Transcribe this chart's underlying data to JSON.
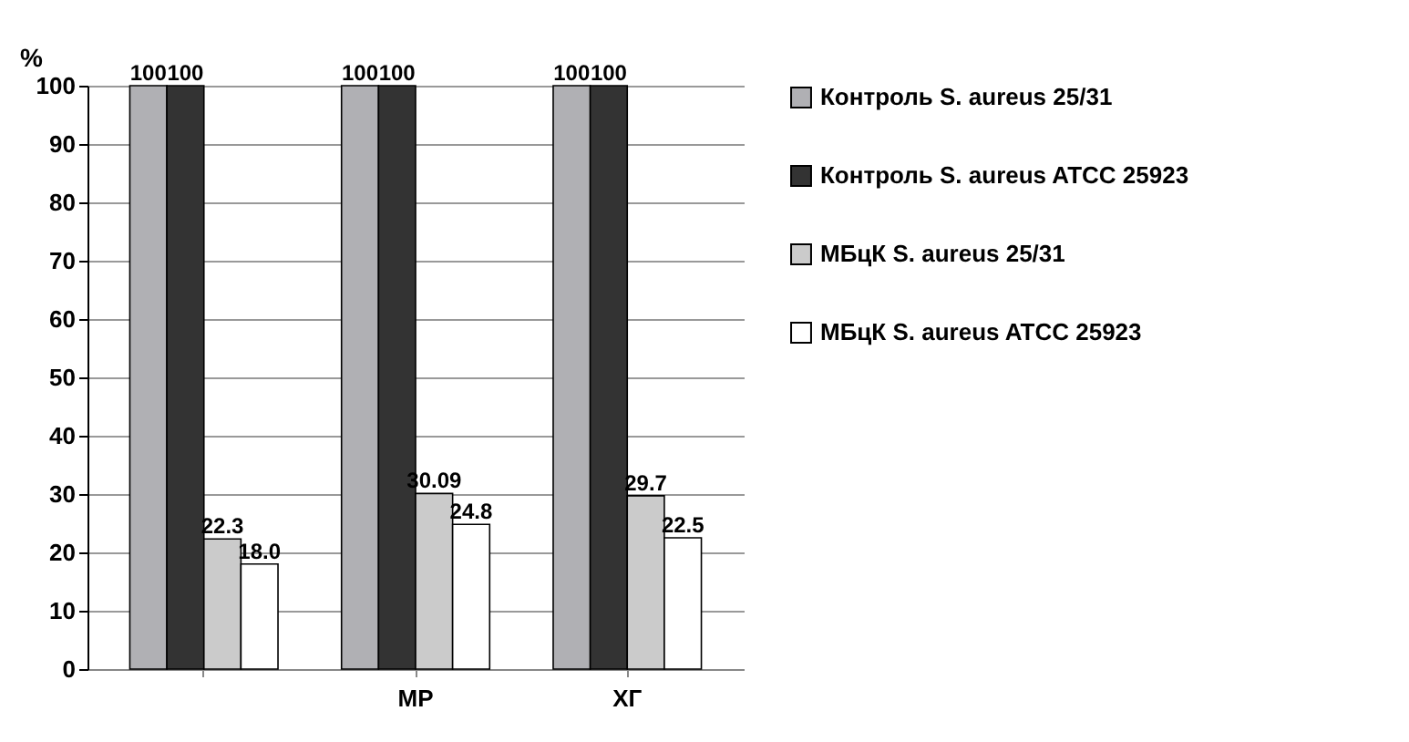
{
  "chart_data": {
    "type": "bar",
    "ylabel": "%",
    "categories": [
      null,
      "МР",
      "ХГ"
    ],
    "series": [
      {
        "name": "Контроль S. aureus 25/31",
        "color": "#b0b0b4",
        "values": [
          100,
          100,
          100
        ],
        "value_labels": [
          "100",
          "100",
          "100"
        ]
      },
      {
        "name": "Контроль S. aureus ATCC 25923",
        "color": "#333333",
        "values": [
          100,
          100,
          100
        ],
        "value_labels": [
          "100",
          "100",
          "100"
        ]
      },
      {
        "name": "МБцК S. aureus 25/31",
        "color": "#cbcbcb",
        "values": [
          22.3,
          30.09,
          29.7
        ],
        "value_labels": [
          "22.3",
          "30.09",
          "29.7"
        ]
      },
      {
        "name": "МБцК S. aureus ATCC 25923",
        "color": "#ffffff",
        "values": [
          18.0,
          24.8,
          22.5
        ],
        "value_labels": [
          "18.0",
          "24.8",
          "22.5"
        ]
      }
    ],
    "ylim": [
      0,
      100
    ],
    "yticks": [
      0,
      10,
      20,
      30,
      40,
      50,
      60,
      70,
      80,
      90,
      100
    ],
    "grid": "y",
    "legend": "right"
  }
}
